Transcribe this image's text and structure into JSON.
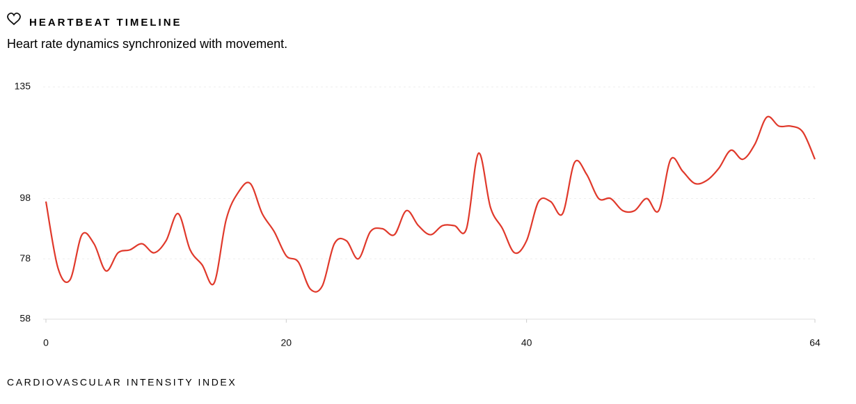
{
  "chart_data": {
    "type": "line",
    "title": "HEARTBEAT TIMELINE",
    "subtitle": "Heart rate dynamics synchronized with movement.",
    "x_label": "CARDIOVASCULAR INTENSITY INDEX",
    "x": [
      0,
      1,
      2,
      3,
      4,
      5,
      6,
      7,
      8,
      9,
      10,
      11,
      12,
      13,
      14,
      15,
      16,
      17,
      18,
      19,
      20,
      21,
      22,
      23,
      24,
      25,
      26,
      27,
      28,
      29,
      30,
      31,
      32,
      33,
      34,
      35,
      36,
      37,
      38,
      39,
      40,
      41,
      42,
      43,
      44,
      45,
      46,
      47,
      48,
      49,
      50,
      51,
      52,
      53,
      54,
      55,
      56,
      57,
      58,
      59,
      60,
      61,
      62,
      63,
      64
    ],
    "series": [
      {
        "name": "Heart rate",
        "color": "#e0392b",
        "values": [
          97,
          75,
          71,
          86,
          83,
          74,
          80,
          81,
          83,
          80,
          84,
          93,
          81,
          76,
          70,
          91,
          100,
          103,
          93,
          87,
          79,
          77,
          68,
          69,
          83,
          84,
          78,
          87,
          88,
          86,
          94,
          89,
          86,
          89,
          89,
          88,
          113,
          95,
          88,
          80,
          84,
          97,
          97,
          93,
          110,
          106,
          98,
          98,
          94,
          94,
          98,
          94,
          111,
          107,
          103,
          104,
          108,
          114,
          111,
          116,
          125,
          122,
          122,
          120,
          111
        ]
      }
    ],
    "xlim": [
      0,
      64
    ],
    "xticks": [
      0,
      20,
      40,
      64
    ],
    "ylim": [
      58,
      135
    ],
    "yticks": [
      58,
      78,
      98,
      135
    ],
    "grid": true
  }
}
